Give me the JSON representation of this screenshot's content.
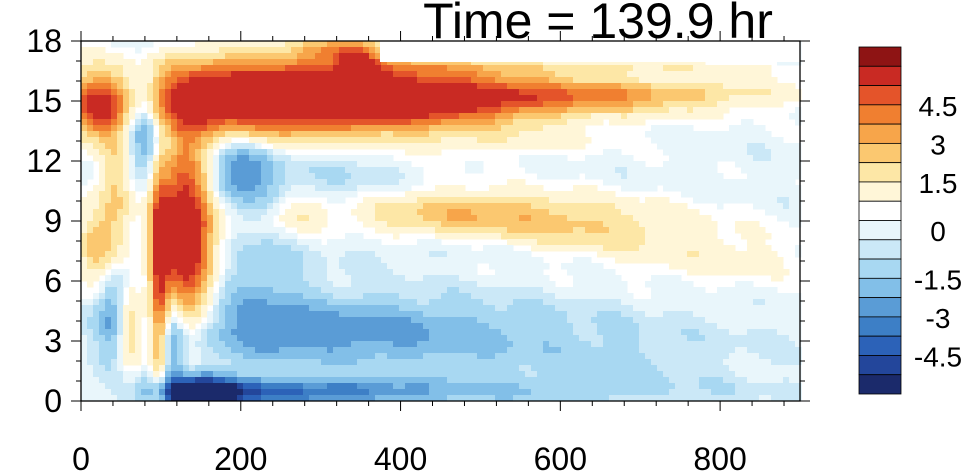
{
  "chart_data": {
    "type": "heatmap",
    "title": "Time = 139.9 hr",
    "xlabel": "",
    "ylabel": "",
    "xlim": [
      0,
      900
    ],
    "ylim": [
      0,
      18
    ],
    "x_ticks": [
      0,
      200,
      400,
      600,
      800
    ],
    "x_tick_labels": [
      "0",
      "200",
      "400",
      "600",
      "800"
    ],
    "y_ticks": [
      0,
      3,
      6,
      9,
      12,
      15,
      18
    ],
    "y_tick_labels": [
      "0",
      "3",
      "6",
      "9",
      "12",
      "15",
      "18"
    ],
    "colorbar": {
      "levels": [
        -5.25,
        -4.5,
        -3.75,
        -3,
        -2.25,
        -1.5,
        -0.75,
        -0.25,
        0.25,
        0.75,
        1.5,
        2.25,
        3,
        3.75,
        4.5,
        5.25
      ],
      "colors": [
        "#1b2a6b",
        "#23469b",
        "#2c62b8",
        "#3d7fc6",
        "#5a9cd6",
        "#82bfe8",
        "#a8d8f2",
        "#cbe8f7",
        "#e9f6fb",
        "#ffffff",
        "#fff6d8",
        "#fde7a6",
        "#fbc870",
        "#f7a54a",
        "#f07f30",
        "#e4542a",
        "#c92a23",
        "#8e1414"
      ],
      "labels": [
        "4.5",
        "3",
        "1.5",
        "0",
        "-1.5",
        "-3",
        "-4.5"
      ],
      "label_values": [
        4.5,
        3,
        1.5,
        0,
        -1.5,
        -3,
        -4.5
      ]
    },
    "features": [
      {
        "x": 270,
        "y": 15.2,
        "sx": 170,
        "sy": 1.4,
        "amp": 7.5
      },
      {
        "x": 500,
        "y": 15.1,
        "sx": 200,
        "sy": 0.7,
        "amp": 3.2
      },
      {
        "x": 720,
        "y": 15.6,
        "sx": 140,
        "sy": 0.5,
        "amp": 1.6
      },
      {
        "x": 640,
        "y": 16.6,
        "sx": 220,
        "sy": 0.35,
        "amp": 1.5
      },
      {
        "x": 345,
        "y": 16.8,
        "sx": 15,
        "sy": 0.5,
        "amp": 3.5
      },
      {
        "x": 325,
        "y": 17.6,
        "sx": 30,
        "sy": 0.4,
        "amp": 2.5
      },
      {
        "x": 480,
        "y": 9.4,
        "sx": 130,
        "sy": 0.85,
        "amp": 2.6
      },
      {
        "x": 650,
        "y": 8.4,
        "sx": 110,
        "sy": 0.9,
        "amp": 1.5
      },
      {
        "x": 800,
        "y": 7.0,
        "sx": 90,
        "sy": 1.0,
        "amp": 0.9
      },
      {
        "x": 270,
        "y": 9.3,
        "sx": 25,
        "sy": 0.6,
        "amp": 1.3
      },
      {
        "x": 550,
        "y": 13.0,
        "sx": 80,
        "sy": 0.5,
        "amp": 0.7
      },
      {
        "x": 130,
        "y": 8.5,
        "sx": 25,
        "sy": 3.2,
        "amp": 7.5
      },
      {
        "x": 98,
        "y": 6.0,
        "sx": 8,
        "sy": 4.5,
        "amp": 4.0
      },
      {
        "x": 25,
        "y": 7.5,
        "sx": 20,
        "sy": 1.5,
        "amp": 3.0
      },
      {
        "x": 20,
        "y": 14.5,
        "sx": 20,
        "sy": 1.0,
        "amp": 3.5
      },
      {
        "x": 60,
        "y": 3.5,
        "sx": 12,
        "sy": 1.5,
        "amp": 3.0
      },
      {
        "x": 45,
        "y": 11.0,
        "sx": 15,
        "sy": 2.0,
        "amp": 2.5
      },
      {
        "x": 150,
        "y": 0.4,
        "sx": 40,
        "sy": 0.6,
        "amp": -7.0
      },
      {
        "x": 280,
        "y": 0.45,
        "sx": 90,
        "sy": 0.45,
        "amp": -3.0
      },
      {
        "x": 500,
        "y": 0.5,
        "sx": 200,
        "sy": 0.5,
        "amp": -1.2
      },
      {
        "x": 310,
        "y": 3.5,
        "sx": 150,
        "sy": 1.2,
        "amp": -2.6
      },
      {
        "x": 600,
        "y": 2.5,
        "sx": 160,
        "sy": 1.5,
        "amp": -0.9
      },
      {
        "x": 200,
        "y": 11.5,
        "sx": 35,
        "sy": 1.2,
        "amp": -3.2
      },
      {
        "x": 330,
        "y": 11.0,
        "sx": 50,
        "sy": 1.5,
        "amp": -1.0
      },
      {
        "x": 80,
        "y": 14.0,
        "sx": 20,
        "sy": 2.0,
        "amp": -4.0
      },
      {
        "x": 40,
        "y": 5.0,
        "sx": 15,
        "sy": 2.0,
        "amp": -2.5
      },
      {
        "x": 115,
        "y": 2.5,
        "sx": 10,
        "sy": 2.0,
        "amp": -2.2
      },
      {
        "x": 220,
        "y": 6.0,
        "sx": 40,
        "sy": 2.0,
        "amp": -1.3
      },
      {
        "x": 450,
        "y": 7.5,
        "sx": 120,
        "sy": 0.5,
        "amp": -0.5
      },
      {
        "x": 700,
        "y": 16.2,
        "sx": 220,
        "sy": 0.4,
        "amp": -0.8
      }
    ]
  }
}
